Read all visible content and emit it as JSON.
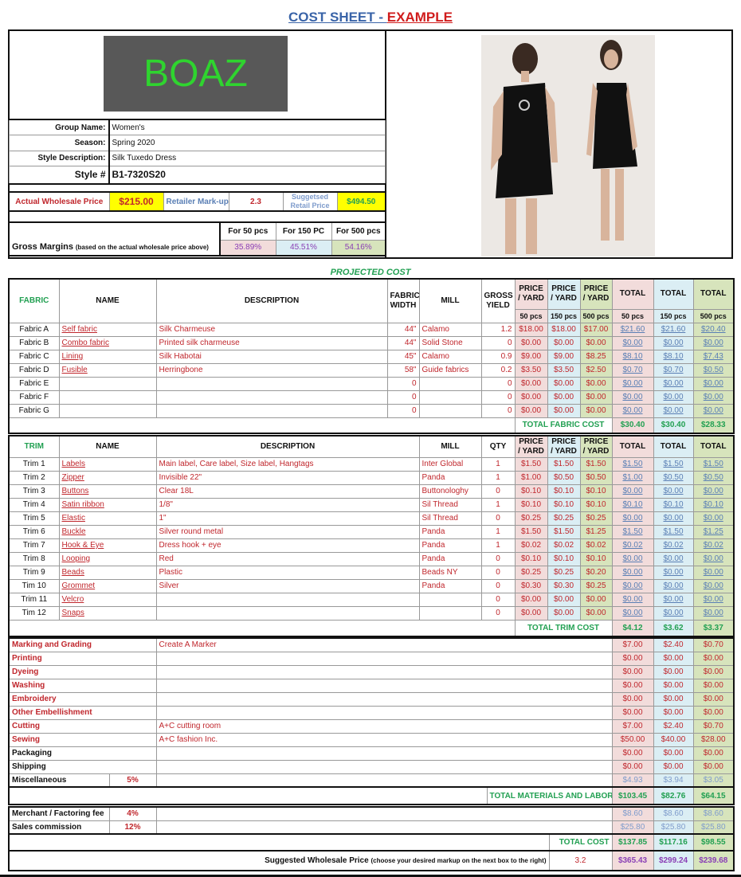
{
  "title": {
    "part1": "COST SHEET - ",
    "part2": "EXAMPLE"
  },
  "logo": "BOAZ",
  "info": [
    {
      "label": "Group Name:",
      "value": "Women's"
    },
    {
      "label": "Season:",
      "value": "Spring 2020"
    },
    {
      "label": "Style Description:",
      "value": "Silk Tuxedo Dress"
    },
    {
      "label": "Style #",
      "value": "B1-7320S20"
    }
  ],
  "pricing": {
    "wholesale_label": "Actual Wholesale  Price",
    "wholesale": "$215.00",
    "markup_label": "Retailer Mark-up",
    "markup": "2.3",
    "retail_label": "Suggetsed Retail Price",
    "retail": "$494.50"
  },
  "margins": {
    "label": "Gross Margins",
    "note": "(based on the actual wholesale price above)",
    "headers": [
      "For 50 pcs",
      "For 150 PC",
      "For 500 pcs"
    ],
    "values": [
      "35.89%",
      "45.51%",
      "54.16%"
    ]
  },
  "projected_label": "PROJECTED COST",
  "fabric": {
    "headers": [
      "FABRIC",
      "NAME",
      "DESCRIPTION",
      "FABRIC WIDTH",
      "MILL",
      "GROSS YIELD",
      "PRICE / YARD",
      "PRICE / YARD",
      "PRICE / YARD",
      "TOTAL",
      "TOTAL",
      "TOTAL"
    ],
    "qty_headers": [
      "50 pcs",
      "150 pcs",
      "500 pcs",
      "50 pcs",
      "150 pcs",
      "500 pcs"
    ],
    "rows": [
      [
        "Fabric A",
        "Self fabric",
        "Silk Charmeuse",
        "44\"",
        "Calamo",
        "1.2",
        "$18.00",
        "$18.00",
        "$17.00",
        "$21.60",
        "$21.60",
        "$20.40"
      ],
      [
        "Fabric B",
        "Combo fabric",
        "Printed silk charmeuse",
        "44\"",
        "Solid Stone",
        "0",
        "$0.00",
        "$0.00",
        "$0.00",
        "$0.00",
        "$0.00",
        "$0.00"
      ],
      [
        "Fabric C",
        "Lining",
        "Silk Habotai",
        "45\"",
        "Calamo",
        "0.9",
        "$9.00",
        "$9.00",
        "$8.25",
        "$8.10",
        "$8.10",
        "$7.43"
      ],
      [
        "Fabric D",
        "Fusible",
        "Herringbone",
        "58\"",
        "Guide fabrics",
        "0.2",
        "$3.50",
        "$3.50",
        "$2.50",
        "$0.70",
        "$0.70",
        "$0.50"
      ],
      [
        "Fabric E",
        "",
        "",
        "0",
        "",
        "0",
        "$0.00",
        "$0.00",
        "$0.00",
        "$0.00",
        "$0.00",
        "$0.00"
      ],
      [
        "Fabric F",
        "",
        "",
        "0",
        "",
        "0",
        "$0.00",
        "$0.00",
        "$0.00",
        "$0.00",
        "$0.00",
        "$0.00"
      ],
      [
        "Fabric G",
        "",
        "",
        "0",
        "",
        "0",
        "$0.00",
        "$0.00",
        "$0.00",
        "$0.00",
        "$0.00",
        "$0.00"
      ]
    ],
    "total_label": "TOTAL FABRIC COST",
    "totals": [
      "$30.40",
      "$30.40",
      "$28.33"
    ]
  },
  "trim": {
    "headers": [
      "TRIM",
      "NAME",
      "DESCRIPTION",
      "MILL",
      "QTY",
      "PRICE / YARD",
      "PRICE / YARD",
      "PRICE / YARD",
      "TOTAL",
      "TOTAL",
      "TOTAL"
    ],
    "rows": [
      [
        "Trim 1",
        "Labels",
        "Main label, Care label, Size label, Hangtags",
        "Inter Global",
        "1",
        "$1.50",
        "$1.50",
        "$1.50",
        "$1.50",
        "$1.50",
        "$1.50"
      ],
      [
        "Trim 2",
        "Zipper",
        "Invisible 22\"",
        "Panda",
        "1",
        "$1.00",
        "$0.50",
        "$0.50",
        "$1.00",
        "$0.50",
        "$0.50"
      ],
      [
        "Trim 3",
        "Buttons",
        "Clear 18L",
        "Buttonologhy",
        "0",
        "$0.10",
        "$0.10",
        "$0.10",
        "$0.00",
        "$0.00",
        "$0.00"
      ],
      [
        "Trim 4",
        "Satin ribbon",
        "1/8\"",
        "Sil Thread",
        "1",
        "$0.10",
        "$0.10",
        "$0.10",
        "$0.10",
        "$0.10",
        "$0.10"
      ],
      [
        "Trim 5",
        "Elastic",
        "1\"",
        "Sil Thread",
        "0",
        "$0.25",
        "$0.25",
        "$0.25",
        "$0.00",
        "$0.00",
        "$0.00"
      ],
      [
        "Trim 6",
        "Buckle",
        "Silver round metal",
        "Panda",
        "1",
        "$1.50",
        "$1.50",
        "$1.25",
        "$1.50",
        "$1.50",
        "$1.25"
      ],
      [
        "Trim 7",
        "Hook & Eye",
        "Dress hook + eye",
        "Panda",
        "1",
        "$0.02",
        "$0.02",
        "$0.02",
        "$0.02",
        "$0.02",
        "$0.02"
      ],
      [
        "Trim 8",
        "Looping",
        "Red",
        "Panda",
        "0",
        "$0.10",
        "$0.10",
        "$0.10",
        "$0.00",
        "$0.00",
        "$0.00"
      ],
      [
        "Trim 9",
        "Beads",
        "Plastic",
        "Beads NY",
        "0",
        "$0.25",
        "$0.25",
        "$0.20",
        "$0.00",
        "$0.00",
        "$0.00"
      ],
      [
        "Tim 10",
        "Grommet",
        "Silver",
        "Panda",
        "0",
        "$0.30",
        "$0.30",
        "$0.25",
        "$0.00",
        "$0.00",
        "$0.00"
      ],
      [
        "Trim 11",
        "Velcro",
        "",
        "",
        "0",
        "$0.00",
        "$0.00",
        "$0.00",
        "$0.00",
        "$0.00",
        "$0.00"
      ],
      [
        "Tim 12",
        "Snaps",
        "",
        "",
        "0",
        "$0.00",
        "$0.00",
        "$0.00",
        "$0.00",
        "$0.00",
        "$0.00"
      ]
    ],
    "total_label": "TOTAL TRIM COST",
    "totals": [
      "$4.12",
      "$3.62",
      "$3.37"
    ]
  },
  "labor": {
    "rows": [
      {
        "label": "Marking and Grading",
        "red": true,
        "pct": "",
        "desc": "Create A Marker",
        "v": [
          "$7.00",
          "$2.40",
          "$0.70"
        ]
      },
      {
        "label": "Printing",
        "red": true,
        "pct": "",
        "desc": "",
        "v": [
          "$0.00",
          "$0.00",
          "$0.00"
        ]
      },
      {
        "label": "Dyeing",
        "red": true,
        "pct": "",
        "desc": "",
        "v": [
          "$0.00",
          "$0.00",
          "$0.00"
        ]
      },
      {
        "label": "Washing",
        "red": true,
        "pct": "",
        "desc": "",
        "v": [
          "$0.00",
          "$0.00",
          "$0.00"
        ]
      },
      {
        "label": "Embroidery",
        "red": true,
        "pct": "",
        "desc": "",
        "v": [
          "$0.00",
          "$0.00",
          "$0.00"
        ]
      },
      {
        "label": "Other Embellishment",
        "red": true,
        "pct": "",
        "desc": "",
        "v": [
          "$0.00",
          "$0.00",
          "$0.00"
        ]
      },
      {
        "label": "Cutting",
        "red": true,
        "pct": "",
        "desc": "A+C cutting room",
        "v": [
          "$7.00",
          "$2.40",
          "$0.70"
        ]
      },
      {
        "label": "Sewing",
        "red": true,
        "pct": "",
        "desc": "A+C fashion Inc.",
        "v": [
          "$50.00",
          "$40.00",
          "$28.00"
        ]
      },
      {
        "label": "Packaging",
        "red": false,
        "pct": "",
        "desc": "",
        "v": [
          "$0.00",
          "$0.00",
          "$0.00"
        ]
      },
      {
        "label": "Shipping",
        "red": false,
        "pct": "",
        "desc": "",
        "v": [
          "$0.00",
          "$0.00",
          "$0.00"
        ]
      },
      {
        "label": "Miscellaneous",
        "red": false,
        "pct": "5%",
        "desc": "",
        "v": [
          "$4.93",
          "$3.94",
          "$3.05"
        ]
      }
    ],
    "total_label": "TOTAL MATERIALS AND LABOR COST",
    "totals": [
      "$103.45",
      "$82.76",
      "$64.15"
    ]
  },
  "fees": {
    "rows": [
      {
        "label": "Merchant / Factoring fee",
        "pct": "4%",
        "v": [
          "$8.60",
          "$8.60",
          "$8.60"
        ]
      },
      {
        "label": "Sales commission",
        "pct": "12%",
        "v": [
          "$25.80",
          "$25.80",
          "$25.80"
        ]
      }
    ],
    "total_label": "TOTAL COST",
    "totals": [
      "$137.85",
      "$117.16",
      "$98.55"
    ]
  },
  "suggested": {
    "label": "Suggested Wholesale Price",
    "note": "(choose your desired markup on the next box to the right)",
    "markup": "3.2",
    "values": [
      "$365.43",
      "$299.24",
      "$239.68"
    ]
  },
  "colors": {
    "pink": "#f2dcdb",
    "blue": "#dbeef4",
    "green": "#d7e4bc",
    "red": "#c0272d",
    "accent_green": "#22a052"
  }
}
